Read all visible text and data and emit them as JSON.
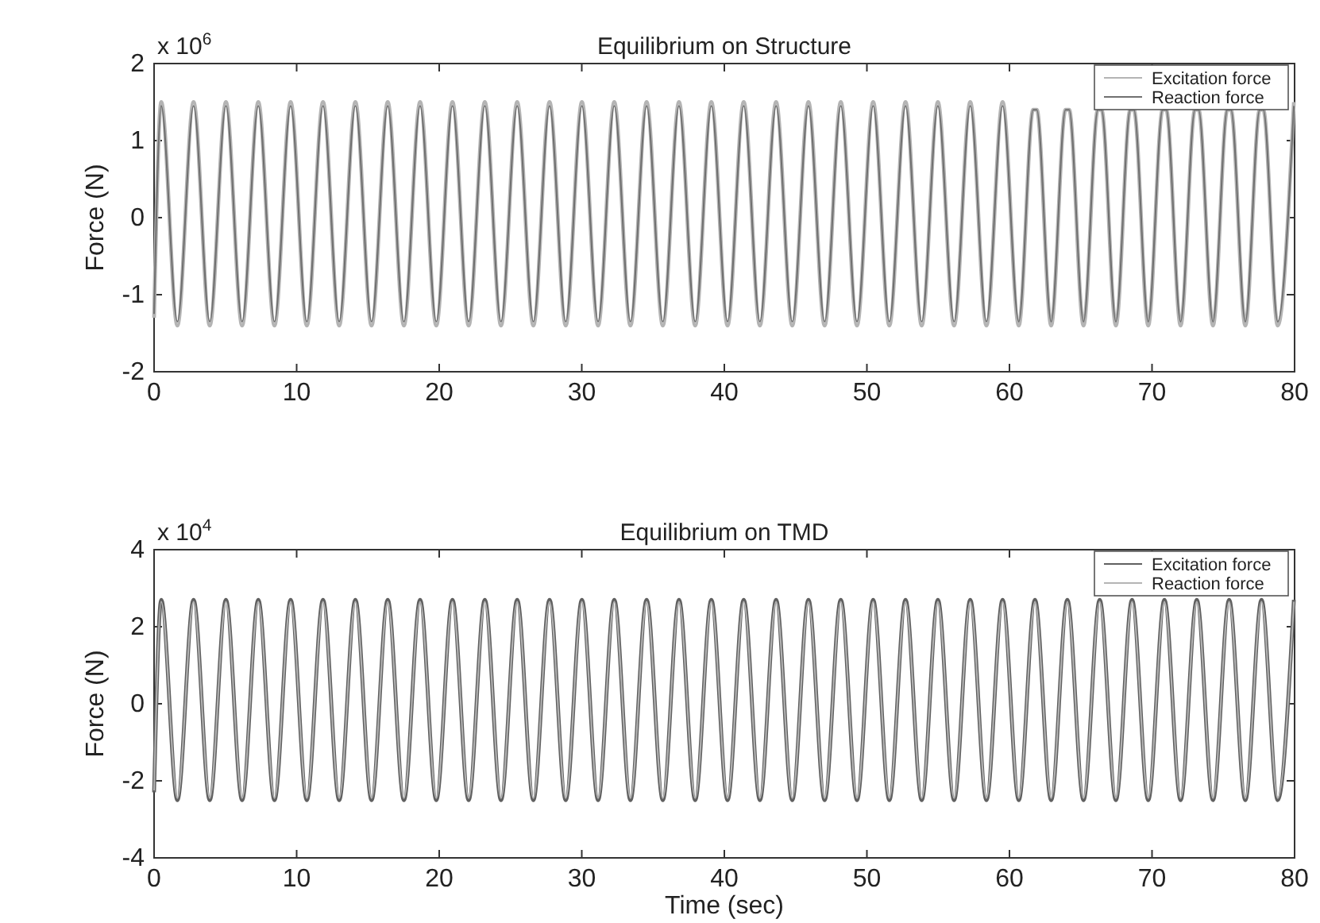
{
  "chart_data": [
    {
      "type": "line",
      "title": "Equilibrium on Structure",
      "ylabel": "Force (N)",
      "annotations": [
        "x 10$^{6}$"
      ],
      "x": [
        0,
        0.5,
        1.635,
        2.77,
        3.905,
        5.04,
        6.175,
        7.31,
        8.445,
        9.58,
        10.715,
        11.85,
        12.985,
        14.12,
        15.255,
        16.39,
        17.525,
        18.66,
        19.795,
        20.93,
        22.065,
        23.2,
        24.335,
        25.47,
        26.605,
        27.74,
        28.875,
        30.01,
        31.145,
        32.28,
        33.415,
        34.55,
        35.685,
        36.82,
        37.955,
        39.09,
        40.225,
        41.36,
        42.495,
        43.63,
        44.765,
        45.9,
        47.035,
        48.17,
        49.305,
        50.44,
        51.575,
        52.71,
        53.845,
        54.98,
        56.115,
        57.25,
        58.385,
        59.52,
        60.655,
        61.66,
        61.92,
        62.925,
        63.93,
        64.19,
        65.195,
        66.2,
        66.46,
        67.465,
        68.47,
        68.73,
        69.735,
        70.74,
        71.0,
        72.005,
        73.01,
        73.27,
        74.275,
        75.28,
        75.54,
        76.545,
        77.55,
        77.81,
        78.815,
        79.95
      ],
      "series": [
        {
          "name": "Excitation force",
          "color": "#b4b4b4",
          "values": [
            -1.3,
            1.5,
            -1.4,
            1.5,
            -1.4,
            1.5,
            -1.4,
            1.5,
            -1.4,
            1.5,
            -1.4,
            1.5,
            -1.4,
            1.5,
            -1.4,
            1.5,
            -1.4,
            1.5,
            -1.4,
            1.5,
            -1.4,
            1.5,
            -1.4,
            1.5,
            -1.4,
            1.5,
            -1.4,
            1.5,
            -1.4,
            1.5,
            -1.4,
            1.5,
            -1.4,
            1.5,
            -1.4,
            1.5,
            -1.4,
            1.5,
            -1.4,
            1.5,
            -1.4,
            1.5,
            -1.4,
            1.5,
            -1.4,
            1.5,
            -1.4,
            1.5,
            -1.4,
            1.5,
            -1.4,
            1.5,
            -1.4,
            1.5,
            -1.4,
            1.4,
            1.4,
            -1.4,
            1.4,
            1.4,
            -1.4,
            1.4,
            1.4,
            -1.4,
            1.4,
            1.4,
            -1.4,
            1.4,
            1.4,
            -1.4,
            1.4,
            1.4,
            -1.4,
            1.4,
            1.4,
            -1.4,
            1.4,
            1.4,
            -1.4,
            1.5
          ]
        },
        {
          "name": "Reaction force",
          "color": "#707070",
          "values": [
            -1.25,
            1.45,
            -1.35,
            1.45,
            -1.35,
            1.45,
            -1.35,
            1.45,
            -1.35,
            1.45,
            -1.35,
            1.45,
            -1.35,
            1.45,
            -1.35,
            1.45,
            -1.35,
            1.45,
            -1.35,
            1.45,
            -1.35,
            1.45,
            -1.35,
            1.45,
            -1.35,
            1.45,
            -1.35,
            1.45,
            -1.35,
            1.45,
            -1.35,
            1.45,
            -1.35,
            1.45,
            -1.35,
            1.45,
            -1.35,
            1.45,
            -1.35,
            1.45,
            -1.35,
            1.45,
            -1.35,
            1.45,
            -1.35,
            1.45,
            -1.35,
            1.45,
            -1.35,
            1.45,
            -1.35,
            1.45,
            -1.35,
            1.45,
            -1.35,
            1.4,
            1.4,
            -1.35,
            1.4,
            1.4,
            -1.35,
            1.4,
            1.4,
            -1.35,
            1.4,
            1.4,
            -1.35,
            1.4,
            1.4,
            -1.35,
            1.4,
            1.4,
            -1.35,
            1.4,
            1.4,
            -1.35,
            1.4,
            1.4,
            -1.35,
            1.45
          ]
        }
      ],
      "xlim": [
        0,
        80
      ],
      "xticks": [
        0,
        10,
        20,
        30,
        40,
        50,
        60,
        70,
        80
      ],
      "ylim": [
        -2,
        2
      ],
      "yticks": [
        -2,
        -1,
        0,
        1,
        2
      ],
      "legend": "top right",
      "grid": false
    },
    {
      "type": "line",
      "title": "Equilibrium on TMD",
      "xlabel": "Time (sec)",
      "ylabel": "Force (N)",
      "annotations": [
        "x 10$^{4}$"
      ],
      "x": [
        0,
        0.5,
        1.635,
        2.77,
        3.905,
        5.04,
        6.175,
        7.31,
        8.445,
        9.58,
        10.715,
        11.85,
        12.985,
        14.12,
        15.255,
        16.39,
        17.525,
        18.66,
        19.795,
        20.93,
        22.065,
        23.2,
        24.335,
        25.47,
        26.605,
        27.74,
        28.875,
        30.01,
        31.145,
        32.28,
        33.415,
        34.55,
        35.685,
        36.82,
        37.955,
        39.09,
        40.225,
        41.36,
        42.495,
        43.63,
        44.765,
        45.9,
        47.035,
        48.17,
        49.305,
        50.44,
        51.575,
        52.71,
        53.845,
        54.98,
        56.115,
        57.25,
        58.385,
        59.52,
        60.655,
        61.79,
        62.925,
        64.06,
        65.195,
        66.33,
        67.465,
        68.6,
        69.735,
        70.87,
        72.005,
        73.14,
        74.275,
        75.41,
        76.545,
        77.68,
        78.815,
        79.95
      ],
      "series": [
        {
          "name": "Excitation force",
          "color": "#606060",
          "values": [
            -2.3,
            2.7,
            -2.5,
            2.7,
            -2.5,
            2.7,
            -2.5,
            2.7,
            -2.5,
            2.7,
            -2.5,
            2.7,
            -2.5,
            2.7,
            -2.5,
            2.7,
            -2.5,
            2.7,
            -2.5,
            2.7,
            -2.5,
            2.7,
            -2.5,
            2.7,
            -2.5,
            2.7,
            -2.5,
            2.7,
            -2.5,
            2.7,
            -2.5,
            2.7,
            -2.5,
            2.7,
            -2.5,
            2.7,
            -2.5,
            2.7,
            -2.5,
            2.7,
            -2.5,
            2.7,
            -2.5,
            2.7,
            -2.5,
            2.7,
            -2.5,
            2.7,
            -2.5,
            2.7,
            -2.5,
            2.7,
            -2.5,
            2.7,
            -2.5,
            2.7,
            -2.5,
            2.7,
            -2.5,
            2.7,
            -2.5,
            2.7,
            -2.5,
            2.7,
            -2.5,
            2.7,
            -2.5,
            2.7,
            -2.5,
            2.7,
            -2.5,
            2.7
          ]
        },
        {
          "name": "Reaction force",
          "color": "#b4b4b4",
          "values": [
            -2.25,
            2.65,
            -2.45,
            2.65,
            -2.45,
            2.65,
            -2.45,
            2.65,
            -2.45,
            2.65,
            -2.45,
            2.65,
            -2.45,
            2.65,
            -2.45,
            2.65,
            -2.45,
            2.65,
            -2.45,
            2.65,
            -2.45,
            2.65,
            -2.45,
            2.65,
            -2.45,
            2.65,
            -2.45,
            2.65,
            -2.45,
            2.65,
            -2.45,
            2.65,
            -2.45,
            2.65,
            -2.45,
            2.65,
            -2.45,
            2.65,
            -2.45,
            2.65,
            -2.45,
            2.65,
            -2.45,
            2.65,
            -2.45,
            2.65,
            -2.45,
            2.65,
            -2.45,
            2.65,
            -2.45,
            2.65,
            -2.45,
            2.65,
            -2.45,
            2.65,
            -2.45,
            2.65,
            -2.45,
            2.65,
            -2.45,
            2.65,
            -2.45,
            2.65,
            -2.45,
            2.65,
            -2.45,
            2.65,
            -2.45,
            2.65,
            -2.45,
            2.65
          ]
        }
      ],
      "xlim": [
        0,
        80
      ],
      "xticks": [
        0,
        10,
        20,
        30,
        40,
        50,
        60,
        70,
        80
      ],
      "ylim": [
        -4,
        4
      ],
      "yticks": [
        -4,
        -2,
        0,
        2,
        4
      ],
      "legend": "top right",
      "grid": false
    }
  ]
}
